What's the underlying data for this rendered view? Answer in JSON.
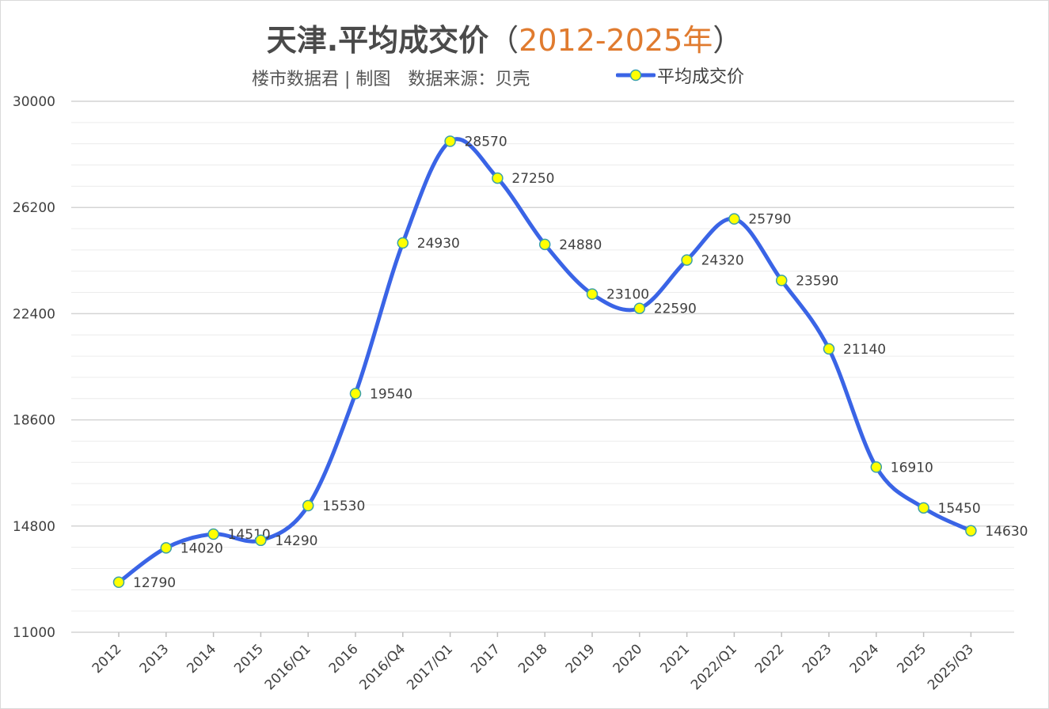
{
  "title": {
    "main": "天津.平均成交价",
    "paren_open": "（",
    "years": "2012-2025年",
    "paren_close": "）"
  },
  "subtitle": "楼市数据君 | 制图　数据来源：贝壳",
  "colors": {
    "line": "#3a64e6",
    "marker_fill": "#ffff00",
    "marker_stroke": "#3aa0a8",
    "title_accent": "#e07b2f",
    "grid_major": "#d4d4d4",
    "grid_minor": "#ececec"
  },
  "chart_data": {
    "type": "line",
    "smooth": true,
    "categories": [
      "2012",
      "2013",
      "2014",
      "2015",
      "2016/Q1",
      "2016",
      "2016/Q4",
      "2017/Q1",
      "2017",
      "2018",
      "2019",
      "2020",
      "2021",
      "2022/Q1",
      "2022",
      "2023",
      "2024",
      "2025",
      "2025/Q3"
    ],
    "series": [
      {
        "name": "平均成交价",
        "values": [
          12790,
          14020,
          14510,
          14290,
          15530,
          19540,
          24930,
          28570,
          27250,
          24880,
          23100,
          22590,
          24320,
          25790,
          23590,
          21140,
          16910,
          15450,
          14630
        ]
      }
    ],
    "data_labels": [
      "12790",
      "14020",
      "14510",
      "14290",
      "15530",
      "19540",
      "24930",
      "28570",
      "27250",
      "24880",
      "23100",
      "22590",
      "24320",
      "25790",
      "23590",
      "21140",
      "16910",
      "15450",
      "14630"
    ],
    "ylim": [
      11000,
      30000
    ],
    "y_ticks": [
      11000,
      14800,
      18600,
      22400,
      26200,
      30000
    ],
    "y_tick_labels": [
      "11000",
      "14800",
      "18600",
      "22400",
      "26200",
      "30000"
    ],
    "grid": true,
    "legend_position": "top-right",
    "x_tick_rotation": -45
  }
}
